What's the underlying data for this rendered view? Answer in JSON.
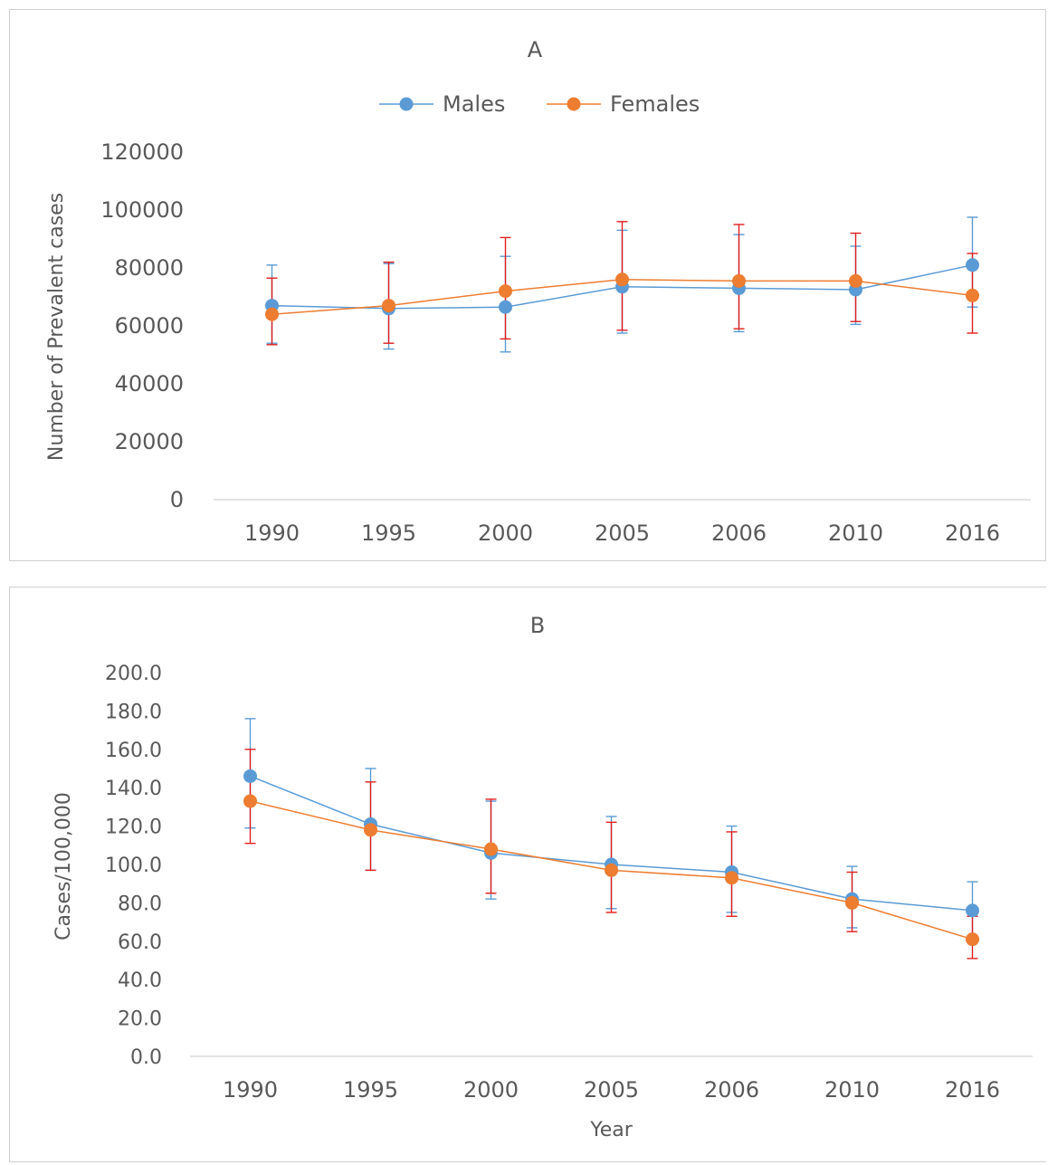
{
  "chart_data": [
    {
      "type": "line",
      "title": "A",
      "xlabel": "",
      "ylabel": "Number of Prevalent cases",
      "categories": [
        "1990",
        "1995",
        "2000",
        "2005",
        "2006",
        "2010",
        "2016"
      ],
      "ylim": [
        0,
        120000
      ],
      "yticks": [
        "0",
        "20000",
        "40000",
        "60000",
        "80000",
        "100000",
        "120000"
      ],
      "legend_position": "top",
      "grid": false,
      "series": [
        {
          "name": "Males",
          "color": "#5b9bd5",
          "values": [
            67000,
            66000,
            66500,
            73500,
            73000,
            72500,
            81000
          ],
          "error_low": [
            54000,
            52000,
            51000,
            57500,
            58000,
            60500,
            66500
          ],
          "error_high": [
            81000,
            81500,
            84000,
            93000,
            91500,
            87500,
            97500
          ]
        },
        {
          "name": "Females",
          "color": "#ed7d31",
          "error_color": "#e02020",
          "values": [
            64000,
            67000,
            72000,
            76000,
            75500,
            75500,
            70500
          ],
          "error_low": [
            53500,
            54000,
            55500,
            58500,
            59000,
            61500,
            57500
          ],
          "error_high": [
            76500,
            82000,
            90500,
            96000,
            95000,
            92000,
            85000
          ]
        }
      ]
    },
    {
      "type": "line",
      "title": "B",
      "xlabel": "Year",
      "ylabel": "Cases/100,000",
      "categories": [
        "1990",
        "1995",
        "2000",
        "2005",
        "2006",
        "2010",
        "2016"
      ],
      "ylim": [
        0,
        200
      ],
      "yticks": [
        "0.0",
        "20.0",
        "40.0",
        "60.0",
        "80.0",
        "100.0",
        "120.0",
        "140.0",
        "160.0",
        "180.0",
        "200.0"
      ],
      "grid": false,
      "series": [
        {
          "name": "Males",
          "color": "#5b9bd5",
          "values": [
            146,
            121,
            106,
            100,
            96,
            82,
            76
          ],
          "error_low": [
            119,
            97,
            82,
            77,
            75,
            67,
            62
          ],
          "error_high": [
            176,
            150,
            133,
            125,
            120,
            99,
            91
          ]
        },
        {
          "name": "Females",
          "color": "#ed7d31",
          "error_color": "#e02020",
          "values": [
            133,
            118,
            108,
            97,
            93,
            80,
            61
          ],
          "error_low": [
            111,
            97,
            85,
            75,
            73,
            65,
            51
          ],
          "error_high": [
            160,
            143,
            134,
            122,
            117,
            96,
            73
          ]
        }
      ]
    }
  ]
}
